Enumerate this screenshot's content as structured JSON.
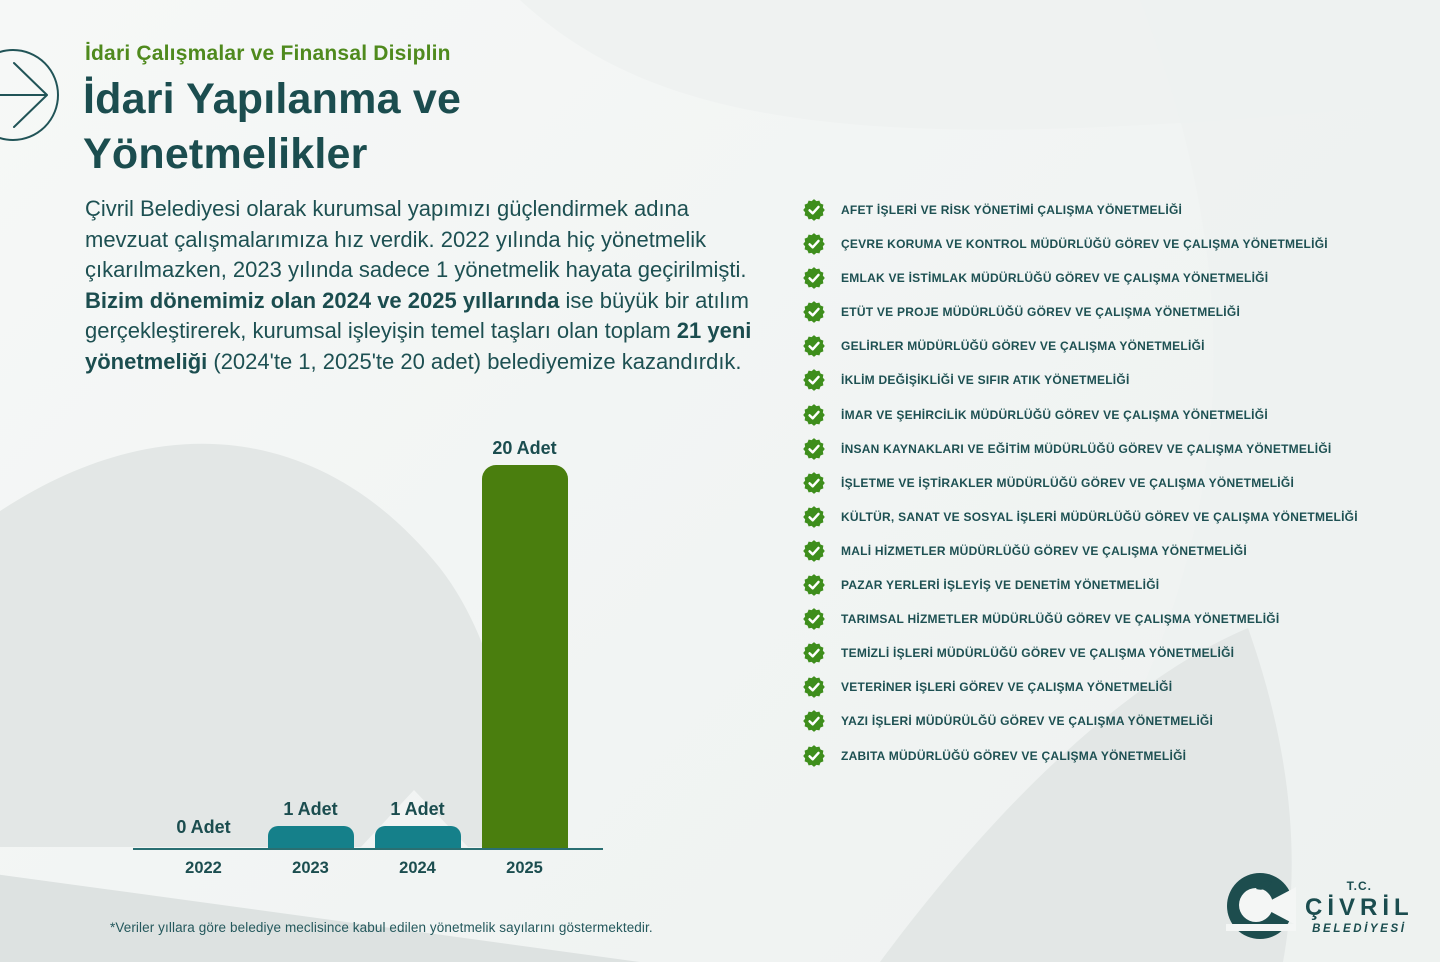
{
  "page": {
    "kicker": "İdari Çalışmalar ve Finansal Disiplin",
    "title_line1": "İdari Yapılanma ve",
    "title_line2": "Yönetmelikler",
    "intro_segments": [
      {
        "text": "Çivril Belediyesi olarak kurumsal yapımızı güçlendirmek adına mevzuat çalışmalarımıza hız verdik. 2022 yılında hiç yönetmelik çıkarılmazken, 2023 yılında sadece 1 yönetmelik hayata geçirilmişti. ",
        "bold": false
      },
      {
        "text": "Bizim dönemimiz olan 2024 ve 2025 yıllarında",
        "bold": true
      },
      {
        "text": " ise büyük bir atılım gerçekleştirerek, kurumsal işleyişin temel taşları olan toplam ",
        "bold": false
      },
      {
        "text": "21 yeni yönetmeliği",
        "bold": true
      },
      {
        "text": " (2024'te 1, 2025'te 20 adet) belediyemize kazandırdık.",
        "bold": false
      }
    ],
    "footnote": "*Veriler yıllara göre belediye meclisince kabul edilen yönetmelik sayılarını göstermektedir."
  },
  "chart_data": {
    "type": "bar",
    "categories": [
      "2022",
      "2023",
      "2024",
      "2025"
    ],
    "values": [
      0,
      1,
      1,
      20
    ],
    "value_labels": [
      "0 Adet",
      "1 Adet",
      "1 Adet",
      "20 Adet"
    ],
    "bar_colors": [
      "#15808a",
      "#15808a",
      "#15808a",
      "#4a7e0e"
    ],
    "title": "",
    "xlabel": "",
    "ylabel": "",
    "ylim": [
      0,
      20
    ],
    "grid": false,
    "legend": false
  },
  "regulations": {
    "icon": "check-seal-icon",
    "items": [
      "AFET İŞLERİ VE RİSK YÖNETİMİ ÇALIŞMA YÖNETMELİĞİ",
      "ÇEVRE KORUMA VE KONTROL MÜDÜRLÜĞÜ GÖREV VE ÇALIŞMA YÖNETMELİĞİ",
      "EMLAK VE İSTİMLAK MÜDÜRLÜĞÜ GÖREV VE ÇALIŞMA YÖNETMELİĞİ",
      "ETÜT VE PROJE MÜDÜRLÜĞÜ GÖREV VE ÇALIŞMA YÖNETMELİĞİ",
      "GELİRLER MÜDÜRLÜĞÜ GÖREV VE ÇALIŞMA YÖNETMELİĞİ",
      "İKLİM DEĞİŞİKLİĞİ VE SIFIR ATIK YÖNETMELİĞİ",
      "İMAR VE ŞEHİRCİLİK MÜDÜRLÜĞÜ GÖREV VE ÇALIŞMA YÖNETMELİĞİ",
      "İNSAN KAYNAKLARI VE EĞİTİM MÜDÜRLÜĞÜ GÖREV VE ÇALIŞMA YÖNETMELİĞİ",
      "İŞLETME VE İŞTİRAKLER MÜDÜRLÜĞÜ GÖREV VE ÇALIŞMA YÖNETMELİĞİ",
      "KÜLTÜR, SANAT VE SOSYAL İŞLERİ MÜDÜRLÜĞÜ GÖREV VE ÇALIŞMA YÖNETMELİĞİ",
      "MALİ HİZMETLER MÜDÜRLÜĞÜ GÖREV VE ÇALIŞMA YÖNETMELİĞİ",
      "PAZAR YERLERİ İŞLEYİŞ VE DENETİM YÖNETMELİĞİ",
      "TARIMSAL HİZMETLER MÜDÜRLÜĞÜ GÖREV VE ÇALIŞMA YÖNETMELİĞİ",
      "TEMİZLİ İŞLERİ MÜDÜRLÜĞÜ GÖREV VE ÇALIŞMA YÖNETMELİĞİ",
      "VETERİNER İŞLERİ GÖREV VE ÇALIŞMA YÖNETMELİĞİ",
      "YAZI İŞLERİ MÜDÜRÜLĞÜ GÖREV VE ÇALIŞMA YÖNETMELİĞİ",
      "ZABITA MÜDÜRLÜĞÜ GÖREV VE ÇALIŞMA YÖNETMELİĞİ"
    ]
  },
  "logo": {
    "tc": "T.C.",
    "name": "ÇİVRİL",
    "subname": "BELEDİYESİ"
  },
  "colors": {
    "dark_teal": "#1b4d4f",
    "accent_green": "#4f8a1d",
    "bar_teal": "#15808a",
    "bar_green": "#4a7e0e",
    "badge_green": "#3e8e1c",
    "text_teal": "#1d5052"
  }
}
